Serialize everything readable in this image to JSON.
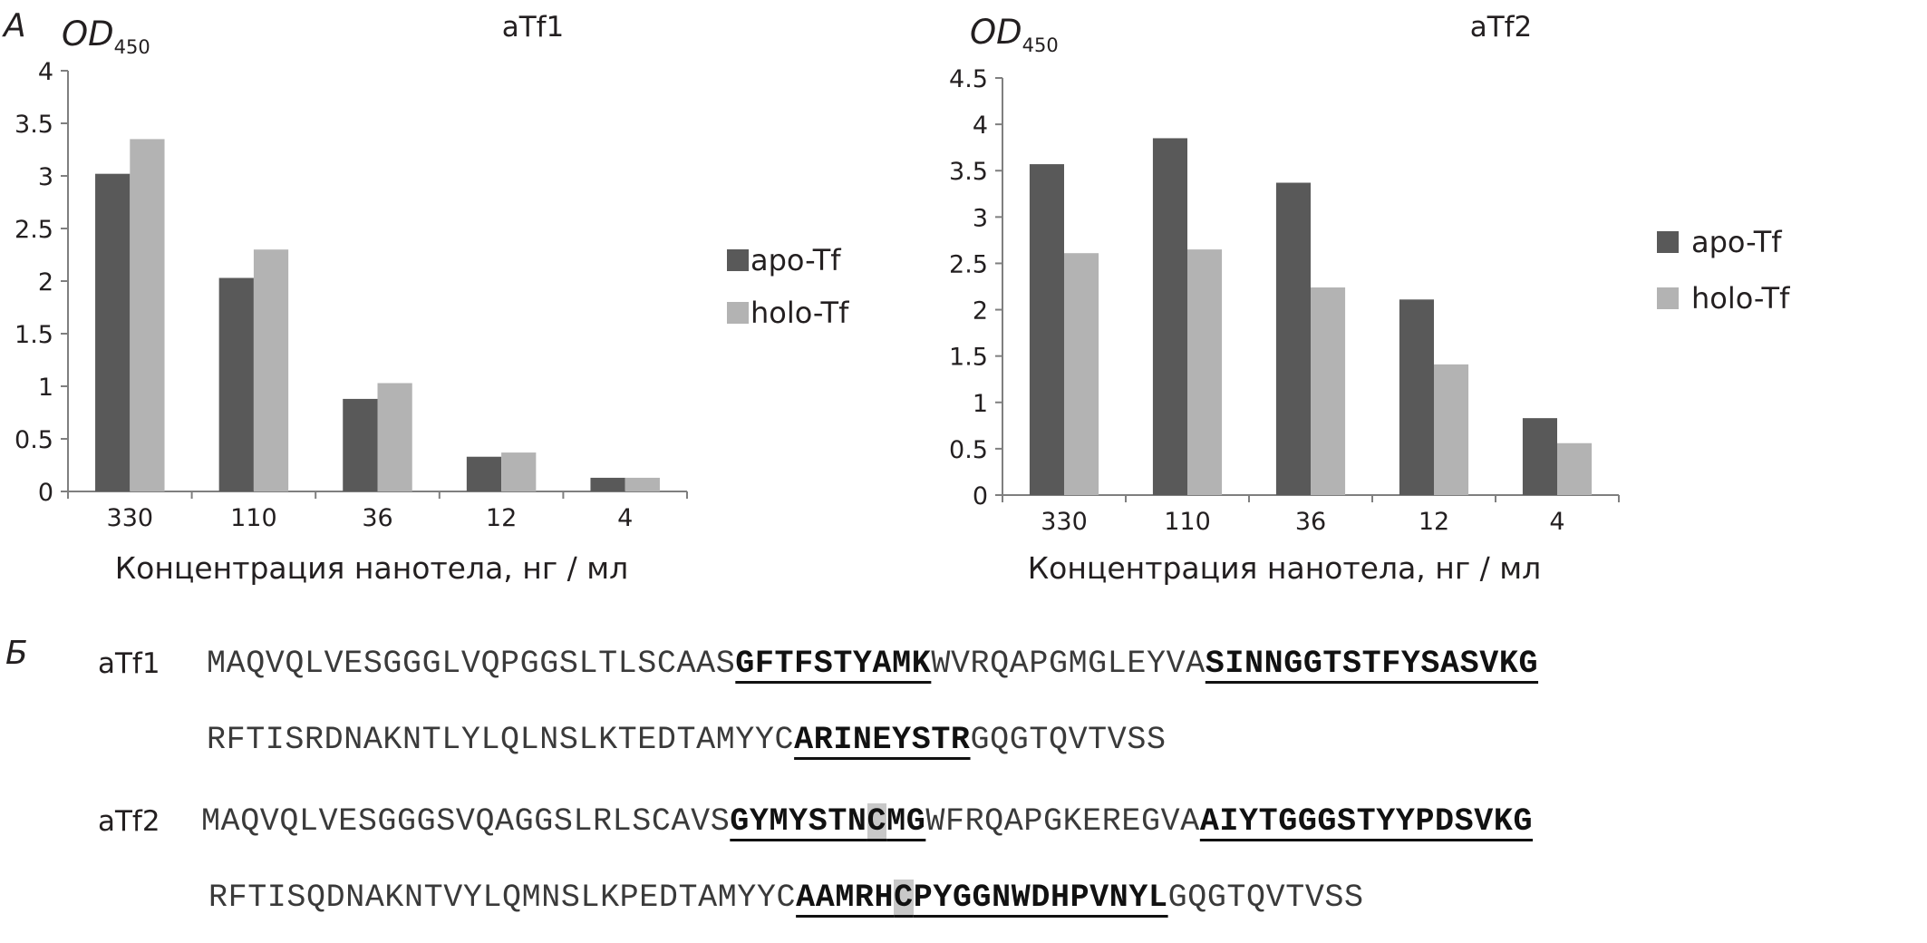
{
  "panel_labels": {
    "a": "A",
    "b": "Б"
  },
  "colors": {
    "apo": "#595959",
    "holo": "#b3b3b3",
    "axis": "#7f7f7f",
    "text": "#231f20",
    "highlight": "#c8c8c8"
  },
  "chart_data": [
    {
      "type": "bar",
      "title": "aTf1",
      "ylabel_main": "OD",
      "ylabel_sub": "450",
      "xlabel": "Концентрация нанотела, нг / мл",
      "categories": [
        "330",
        "110",
        "36",
        "12",
        "4"
      ],
      "ylim": [
        0,
        4
      ],
      "yticks": [
        "0",
        "0.5",
        "1",
        "1.5",
        "2",
        "2.5",
        "3",
        "3.5",
        "4"
      ],
      "legend_position": "right",
      "grid": false,
      "series": [
        {
          "name": "apo-Tf",
          "values": [
            3.02,
            2.03,
            0.88,
            0.33,
            0.13
          ]
        },
        {
          "name": "holo-Tf",
          "values": [
            3.35,
            2.3,
            1.03,
            0.37,
            0.13
          ]
        }
      ]
    },
    {
      "type": "bar",
      "title": "aTf2",
      "ylabel_main": "OD",
      "ylabel_sub": "450",
      "xlabel": "Концентрация нанотела, нг / мл",
      "categories": [
        "330",
        "110",
        "36",
        "12",
        "4"
      ],
      "ylim": [
        0,
        4.5
      ],
      "yticks": [
        "0",
        "0.5",
        "1",
        "1.5",
        "2",
        "2.5",
        "3",
        "3.5",
        "4",
        "4.5"
      ],
      "legend_position": "right",
      "grid": false,
      "series": [
        {
          "name": "apo-Tf",
          "values": [
            3.57,
            3.85,
            3.37,
            2.11,
            0.83
          ]
        },
        {
          "name": "holo-Tf",
          "values": [
            2.61,
            2.65,
            2.24,
            1.41,
            0.56
          ]
        }
      ]
    }
  ],
  "sequences": [
    {
      "label": "aTf1",
      "lines": [
        [
          {
            "t": "MAQVQLVESGGGLVQPGGSLTLSCAAS",
            "cdr": false
          },
          {
            "t": "GFTFSTYAMK",
            "cdr": true
          },
          {
            "t": "WVRQAPGMGLEYVA",
            "cdr": false
          },
          {
            "t": "SINNGGTSTFYSASVKG",
            "cdr": true
          }
        ],
        [
          {
            "t": "RFTISRDNAKNTLYLQLNSLKTEDTAMYYC",
            "cdr": false
          },
          {
            "t": "ARINEYSTR",
            "cdr": true
          },
          {
            "t": "GQGTQVTVSS",
            "cdr": false
          }
        ]
      ]
    },
    {
      "label": "aTf2",
      "lines": [
        [
          {
            "t": "MAQVQLVESGGGSVQAGGSLRLSCAVS",
            "cdr": false
          },
          {
            "t": "GYMYSTN",
            "cdr": true
          },
          {
            "t": "C",
            "cdr": true,
            "hl": true
          },
          {
            "t": "MG",
            "cdr": true
          },
          {
            "t": "WFRQAPGKEREGVA",
            "cdr": false
          },
          {
            "t": "AIYTGGGSTYYPDSVKG",
            "cdr": true
          }
        ],
        [
          {
            "t": "RFTISQDNAKNTVYLQMNSLKPEDTAMYYC",
            "cdr": false
          },
          {
            "t": "AAMRH",
            "cdr": true
          },
          {
            "t": "C",
            "cdr": true,
            "hl": true
          },
          {
            "t": "PYGGNWDHPVNYL",
            "cdr": true
          },
          {
            "t": "GQGTQVTVSS",
            "cdr": false
          }
        ]
      ]
    }
  ]
}
